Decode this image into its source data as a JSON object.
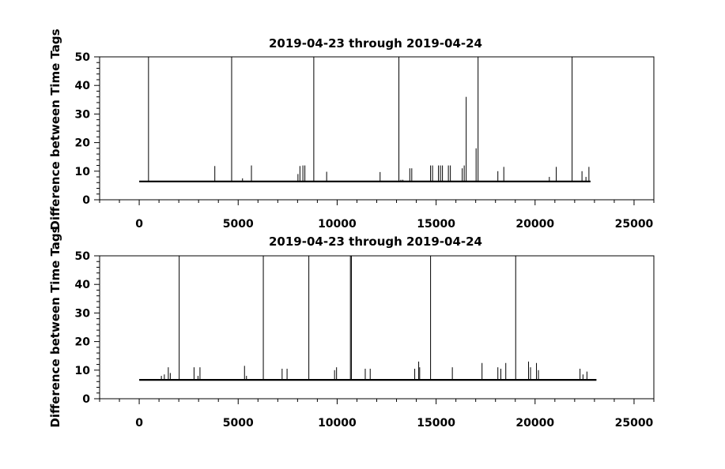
{
  "chart_data": [
    {
      "type": "line",
      "title": "2019-04-23 through 2019-04-24",
      "ylabel": "Difference between Time Tags",
      "xlabel": "",
      "xlim": [
        -2000,
        26000
      ],
      "ylim": [
        0,
        50
      ],
      "xticks": [
        0,
        5000,
        10000,
        15000,
        20000,
        25000
      ],
      "yticks": [
        0,
        10,
        20,
        30,
        40,
        50
      ],
      "x_minor_step": 1000,
      "y_minor_step": 2,
      "grid": false,
      "baseline": 6.4,
      "x_start": 0,
      "x_end": 22800,
      "series": [
        {
          "spikes_x": [
            450,
            4650,
            8800,
            13100,
            17100,
            21850,
            3800,
            5200,
            5650,
            8000,
            8100,
            8250,
            8350,
            9450,
            12150,
            13200,
            13300,
            13650,
            13750,
            14700,
            14800,
            15100,
            15200,
            15300,
            15600,
            15700,
            16300,
            16400,
            16500,
            17000,
            18100,
            18400,
            20700,
            21050,
            22350,
            22550,
            22700
          ],
          "spikes_y": [
            50,
            50,
            50,
            50,
            50,
            50,
            11.8,
            7.5,
            12,
            9,
            11.8,
            12,
            12,
            9.8,
            9.7,
            7,
            7,
            11,
            11,
            12,
            12,
            12,
            12,
            12,
            12,
            12,
            11,
            12,
            36,
            18,
            10,
            11.5,
            8,
            11.5,
            10,
            8,
            11.5
          ]
        }
      ]
    },
    {
      "type": "line",
      "title": "2019-04-23 through 2019-04-24",
      "ylabel": "Difference between Time Tags",
      "xlabel": "",
      "xlim": [
        -2000,
        26000
      ],
      "ylim": [
        0,
        50
      ],
      "xticks": [
        0,
        5000,
        10000,
        15000,
        20000,
        25000
      ],
      "yticks": [
        0,
        10,
        20,
        30,
        40,
        50
      ],
      "x_minor_step": 1000,
      "y_minor_step": 2,
      "grid": false,
      "baseline": 6.6,
      "x_start": 0,
      "x_end": 23100,
      "series": [
        {
          "spikes_x": [
            2000,
            6250,
            8550,
            10650,
            10700,
            14700,
            19000,
            1100,
            1250,
            1450,
            1550,
            2750,
            2950,
            3050,
            5300,
            5400,
            7200,
            7450,
            9850,
            9950,
            11400,
            11650,
            13900,
            14100,
            14150,
            15800,
            17300,
            18100,
            18250,
            18500,
            19650,
            19750,
            20050,
            20150,
            22250,
            22400,
            22600
          ],
          "spikes_y": [
            50,
            50,
            50,
            50,
            50,
            50,
            50,
            8,
            8.5,
            11,
            9,
            11,
            8,
            11,
            11.5,
            8,
            10.5,
            10.5,
            10,
            11,
            10.5,
            10.5,
            10.5,
            13,
            11,
            11,
            12.5,
            11,
            10.5,
            12.5,
            13,
            11,
            12.5,
            10,
            10.5,
            8.5,
            9.5
          ]
        }
      ]
    }
  ]
}
